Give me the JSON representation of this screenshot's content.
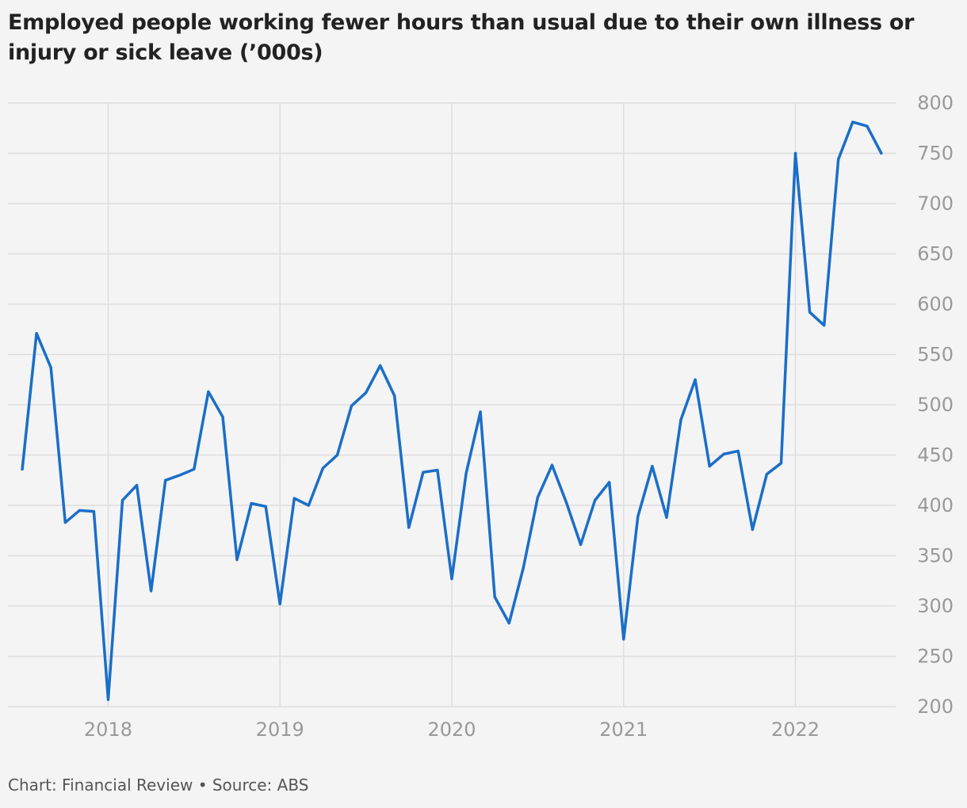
{
  "title": "Employed people working fewer hours than usual due to their own illness or injury or sick leave (’000s)",
  "footer": "Chart: Financial Review • Source: ABS",
  "colors": {
    "line": "#1a6ec8",
    "grid": "#dddddd",
    "tick": "#999999",
    "background": "#f4f4f4"
  },
  "chart_data": {
    "type": "line",
    "title": "Employed people working fewer hours than usual due to their own illness or injury or sick leave (’000s)",
    "xlabel": "",
    "ylabel": "",
    "ylim": [
      200,
      800
    ],
    "yticks": [
      200,
      250,
      300,
      350,
      400,
      450,
      500,
      550,
      600,
      650,
      700,
      750,
      800
    ],
    "xlim": [
      "2017-06",
      "2022-08"
    ],
    "xticks": [
      "2018",
      "2019",
      "2020",
      "2021",
      "2022"
    ],
    "grid": true,
    "y_axis_position": "right",
    "series": [
      {
        "x": [
          "2017-07",
          "2017-08",
          "2017-09",
          "2017-10",
          "2017-11",
          "2017-12",
          "2018-01",
          "2018-02",
          "2018-03",
          "2018-04",
          "2018-05",
          "2018-06",
          "2018-07",
          "2018-08",
          "2018-09",
          "2018-10",
          "2018-11",
          "2018-12",
          "2019-01",
          "2019-02",
          "2019-03",
          "2019-04",
          "2019-05",
          "2019-06",
          "2019-07",
          "2019-08",
          "2019-09",
          "2019-10",
          "2019-11",
          "2019-12",
          "2020-01",
          "2020-02",
          "2020-03",
          "2020-04",
          "2020-05",
          "2020-06",
          "2020-07",
          "2020-08",
          "2020-09",
          "2020-10",
          "2020-11",
          "2020-12",
          "2021-01",
          "2021-02",
          "2021-03",
          "2021-04",
          "2021-05",
          "2021-06",
          "2021-07",
          "2021-08",
          "2021-09",
          "2021-10",
          "2021-11",
          "2021-12",
          "2022-01",
          "2022-02",
          "2022-03",
          "2022-04",
          "2022-05",
          "2022-06",
          "2022-07"
        ],
        "values": [
          436,
          571,
          537,
          383,
          395,
          394,
          207,
          405,
          420,
          315,
          425,
          430,
          436,
          513,
          488,
          346,
          402,
          399,
          302,
          407,
          400,
          437,
          450,
          499,
          512,
          539,
          509,
          378,
          433,
          435,
          327,
          432,
          493,
          309,
          283,
          338,
          408,
          440,
          403,
          361,
          405,
          423,
          267,
          389,
          439,
          388,
          485,
          525,
          439,
          451,
          454,
          376,
          431,
          442,
          750,
          592,
          579,
          744,
          781,
          777,
          750
        ]
      }
    ]
  }
}
